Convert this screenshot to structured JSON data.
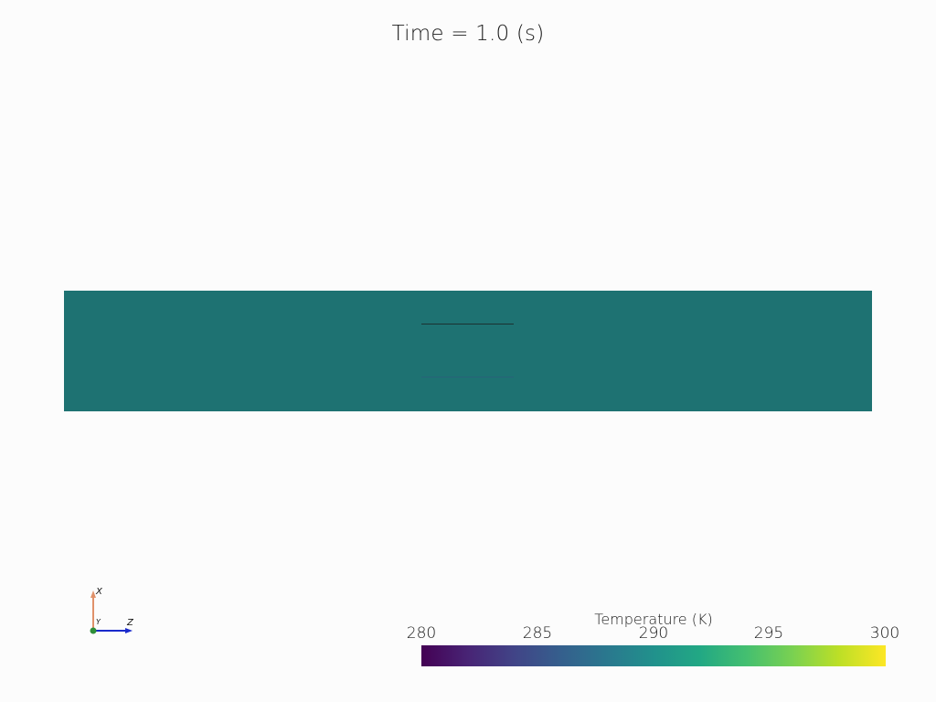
{
  "title": "Time = 1.0 (s)",
  "domain_color": "#1e7272",
  "axes": {
    "x_label": "X",
    "y_label": "Y",
    "z_label": "Z"
  },
  "colorbar": {
    "title": "Temperature (K)",
    "colormap": "viridis",
    "range": [
      280,
      300
    ],
    "ticks": [
      "280",
      "285",
      "290",
      "295",
      "300"
    ]
  }
}
